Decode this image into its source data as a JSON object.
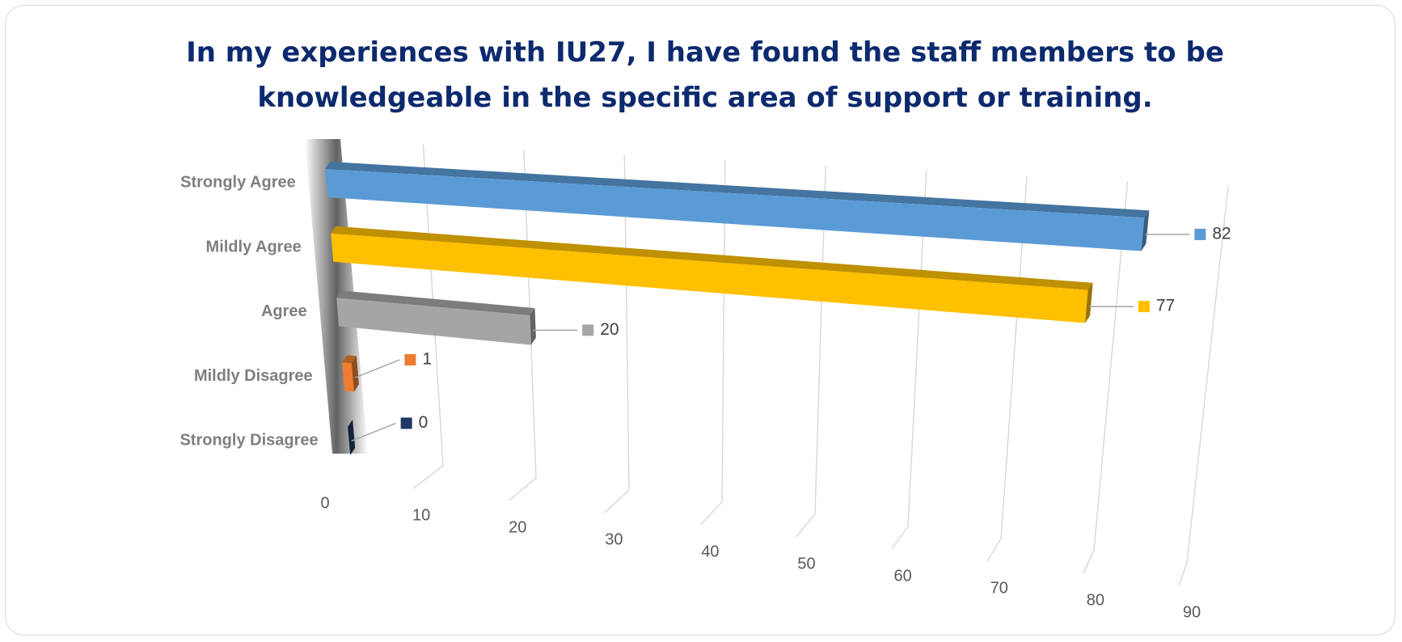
{
  "chart_data": {
    "type": "bar3d",
    "title": "In my experiences with IU27, I have found the staff members to be knowledgeable in the specific area of support or training.",
    "categories": [
      "Strongly Agree",
      "Mildly Agree",
      "Agree",
      "Mildly Disagree",
      "Strongly Disagree"
    ],
    "values": [
      82,
      77,
      20,
      1,
      0
    ],
    "colors": [
      "#5b9bd5",
      "#ffc000",
      "#a5a5a5",
      "#ed7d31",
      "#1f3864"
    ],
    "xlim": [
      0,
      90
    ],
    "xticks": [
      0,
      10,
      20,
      30,
      40,
      50,
      60,
      70,
      80,
      90
    ],
    "grid": true
  }
}
